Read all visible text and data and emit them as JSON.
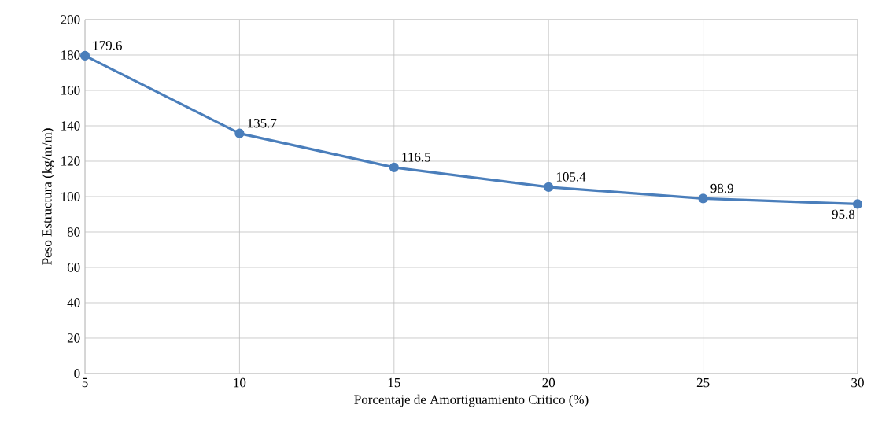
{
  "chart_data": {
    "type": "line",
    "xlabel": "Porcentaje de Amortiguamiento Critico (%)",
    "ylabel": "Peso Estructura (kg/m/m)",
    "x": [
      5,
      10,
      15,
      20,
      25,
      30
    ],
    "series": [
      {
        "color": "#4a7ebb",
        "values": [
          179.6,
          135.7,
          116.5,
          105.4,
          98.9,
          95.8
        ]
      }
    ],
    "xlim": [
      5,
      30
    ],
    "xticks": [
      5,
      10,
      15,
      20,
      25,
      30
    ],
    "ylim": [
      0,
      200
    ],
    "yticks": [
      0,
      20,
      40,
      60,
      80,
      100,
      120,
      140,
      160,
      180,
      200
    ],
    "grid": true,
    "marker": "circle",
    "line_style": "solid",
    "data_labels": true
  }
}
